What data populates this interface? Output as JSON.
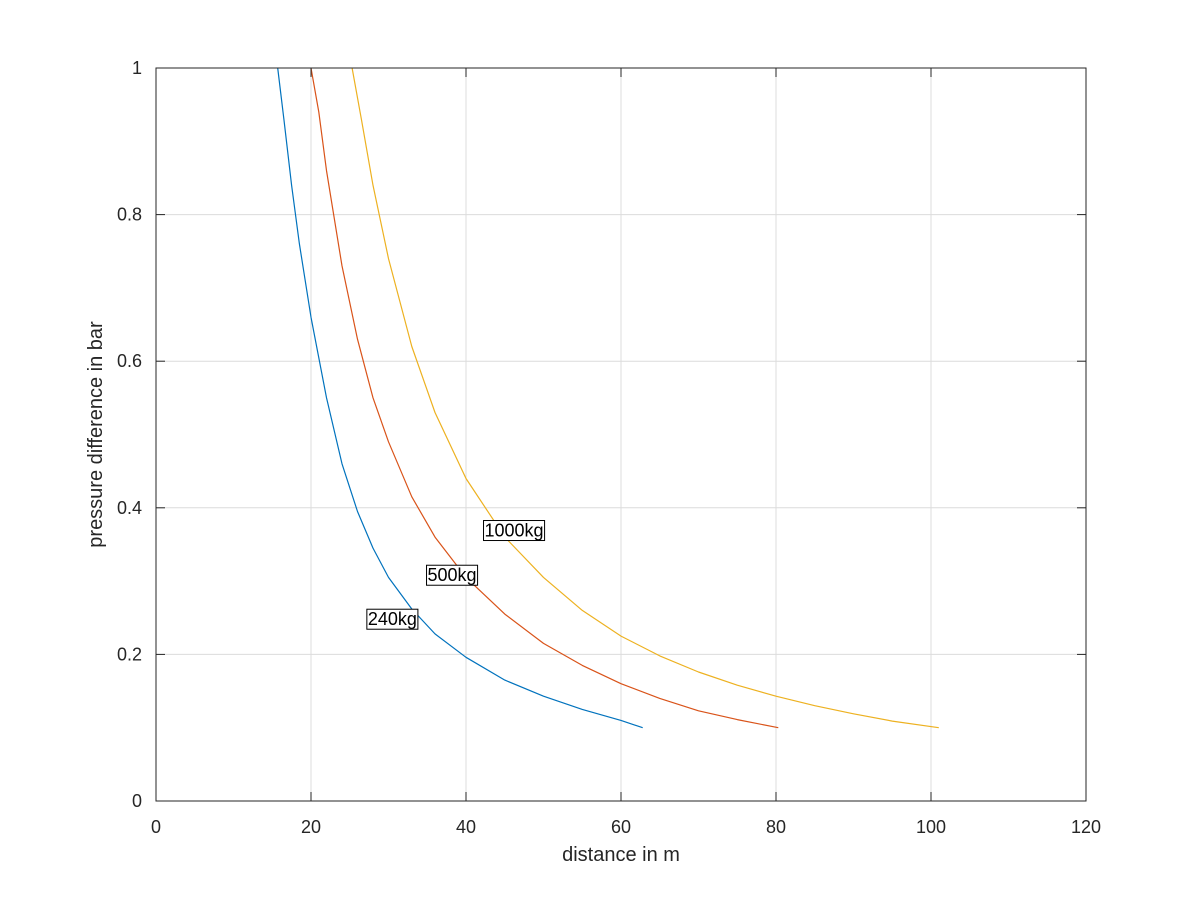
{
  "chart_data": {
    "type": "line",
    "xlabel": "distance in m",
    "ylabel": "pressure difference in bar",
    "xlim": [
      0,
      120
    ],
    "ylim": [
      0,
      1
    ],
    "xticks": [
      0,
      20,
      40,
      60,
      80,
      100,
      120
    ],
    "yticks": [
      0,
      0.2,
      0.4,
      0.6,
      0.8,
      1
    ],
    "xtick_labels": [
      "0",
      "20",
      "40",
      "60",
      "80",
      "100",
      "120"
    ],
    "ytick_labels": [
      "0",
      "0.2",
      "0.4",
      "0.6",
      "0.8",
      "1"
    ],
    "grid": true,
    "colors": {
      "axes": "#262626",
      "grid": "#dcdcdc",
      "background": "#ffffff"
    },
    "series": [
      {
        "color": "#0072BD",
        "x": [
          15.7,
          16.5,
          17.5,
          18.5,
          20,
          22,
          24,
          26,
          28,
          30,
          33,
          36,
          40,
          45,
          50,
          55,
          60,
          62.8
        ],
        "values": [
          1.0,
          0.93,
          0.84,
          0.76,
          0.66,
          0.55,
          0.46,
          0.395,
          0.345,
          0.305,
          0.262,
          0.228,
          0.196,
          0.165,
          0.143,
          0.125,
          0.11,
          0.1
        ]
      },
      {
        "color": "#D95319",
        "x": [
          20.0,
          21,
          22,
          24,
          26,
          28,
          30,
          33,
          36,
          40,
          45,
          50,
          55,
          60,
          65,
          70,
          75,
          80.3
        ],
        "values": [
          1.0,
          0.94,
          0.86,
          0.73,
          0.63,
          0.55,
          0.49,
          0.415,
          0.36,
          0.305,
          0.255,
          0.215,
          0.185,
          0.16,
          0.14,
          0.123,
          0.111,
          0.1
        ]
      },
      {
        "color": "#EDB120",
        "x": [
          25.3,
          26.5,
          28,
          30,
          33,
          36,
          40,
          45,
          50,
          55,
          60,
          65,
          70,
          75,
          80,
          85,
          90,
          95,
          101
        ],
        "values": [
          1.0,
          0.93,
          0.84,
          0.74,
          0.62,
          0.53,
          0.44,
          0.36,
          0.305,
          0.26,
          0.225,
          0.198,
          0.176,
          0.158,
          0.143,
          0.13,
          0.119,
          0.109,
          0.1
        ]
      }
    ],
    "annotations": [
      {
        "text": "240kg",
        "x": 30.5,
        "y": 0.248
      },
      {
        "text": "500kg",
        "x": 38.2,
        "y": 0.308
      },
      {
        "text": "1000kg",
        "x": 46.2,
        "y": 0.369
      }
    ]
  }
}
